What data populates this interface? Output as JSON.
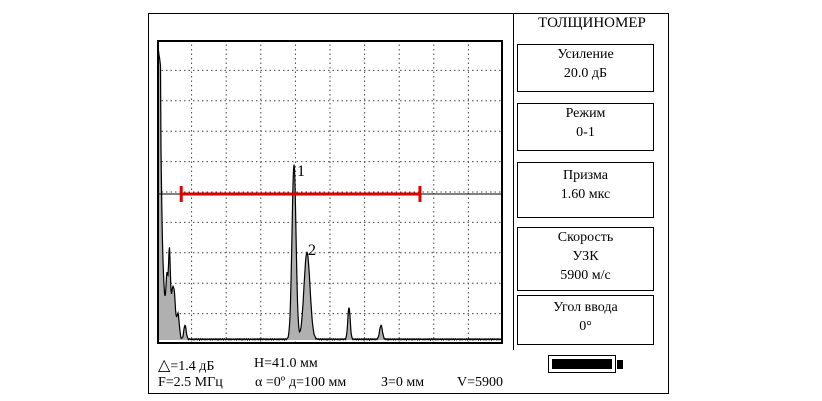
{
  "app": {
    "title": "ТОЛЩИНОМЕР"
  },
  "panels": [
    {
      "lines": [
        "Усиление",
        "20.0 дБ"
      ]
    },
    {
      "lines": [
        "Режим",
        "0-1"
      ]
    },
    {
      "lines": [
        "Призма",
        "1.60 мкс"
      ]
    },
    {
      "lines": [
        "Скорость",
        "УЗК",
        "5900 м/с"
      ]
    },
    {
      "lines": [
        "Угол ввода",
        "0°"
      ]
    }
  ],
  "status": {
    "delta_symbol": "△",
    "delta_value": "=1.4 дБ",
    "h_value": "H=41.0 мм",
    "frequency": "F=2.5 МГц",
    "alpha": "α =0º",
    "d_value": "д=100 мм",
    "z_value": "З=0 мм",
    "velocity": "V=5900"
  },
  "ascan": {
    "grid_divisions_x": 10,
    "grid_divisions_y": 10,
    "gate": {
      "start_fraction": 0.07,
      "end_fraction": 0.76,
      "level_fraction": 0.5,
      "color": "#e00000"
    },
    "markers": [
      {
        "label": "1"
      },
      {
        "label": "2"
      }
    ],
    "fill_color": "#b0b0b0",
    "trace_color": "#000000"
  },
  "battery": {
    "level": 1.0
  }
}
